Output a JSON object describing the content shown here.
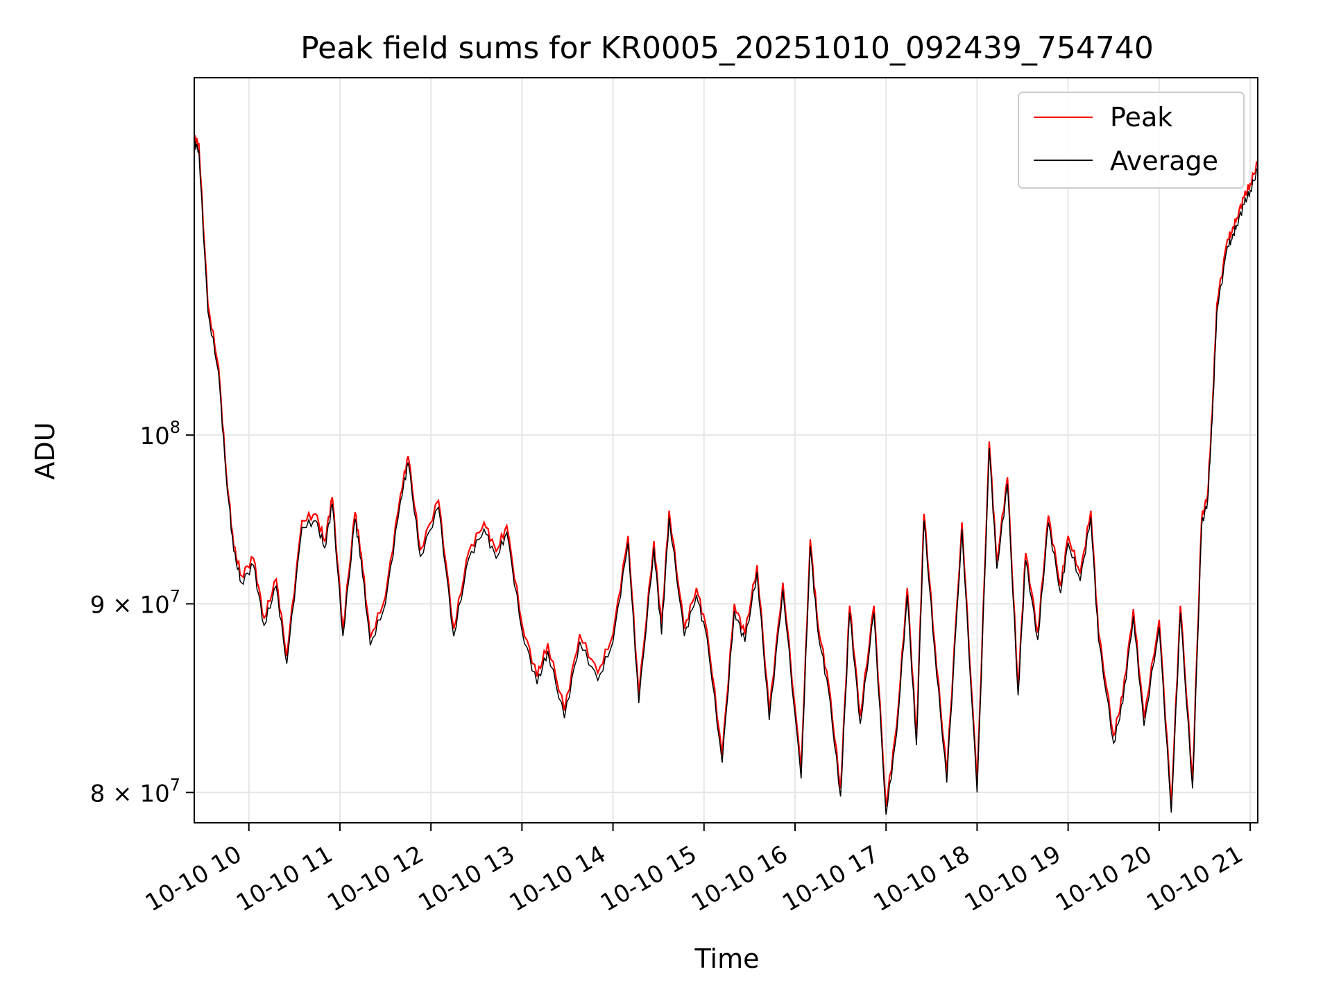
{
  "chart_data": {
    "type": "line",
    "title": "Peak field sums for KR0005_20251010_092439_754740",
    "xlabel": "Time",
    "ylabel": "ADU",
    "yscale": "log",
    "xlim": [
      "2025-10-10 09:24",
      "2025-10-10 21:05"
    ],
    "ylim": [
      78500000,
      125000000
    ],
    "x_ticks": [
      "10-10 10",
      "10-10 11",
      "10-10 12",
      "10-10 13",
      "10-10 14",
      "10-10 15",
      "10-10 16",
      "10-10 17",
      "10-10 18",
      "10-10 19",
      "10-10 20",
      "10-10 21"
    ],
    "y_ticks": [
      {
        "value": 80000000,
        "mantissa": "8",
        "base": "10",
        "exp": "7"
      },
      {
        "value": 90000000,
        "mantissa": "9",
        "base": "10",
        "exp": "7"
      },
      {
        "value": 100000000,
        "mantissa": "",
        "base": "10",
        "exp": "8"
      }
    ],
    "grid": true,
    "legend_position": "top-right",
    "series": [
      {
        "name": "Peak",
        "color": "#ff0000"
      },
      {
        "name": "Average",
        "color": "#000000"
      }
    ],
    "x": [
      "2025-10-10 09:24",
      "2025-10-10 09:27",
      "2025-10-10 09:33",
      "2025-10-10 09:40",
      "2025-10-10 09:45",
      "2025-10-10 09:50",
      "2025-10-10 09:55",
      "2025-10-10 10:03",
      "2025-10-10 10:10",
      "2025-10-10 10:18",
      "2025-10-10 10:25",
      "2025-10-10 10:35",
      "2025-10-10 10:44",
      "2025-10-10 10:50",
      "2025-10-10 10:55",
      "2025-10-10 11:02",
      "2025-10-10 11:10",
      "2025-10-10 11:14",
      "2025-10-10 11:20",
      "2025-10-10 11:30",
      "2025-10-10 11:40",
      "2025-10-10 11:45",
      "2025-10-10 11:53",
      "2025-10-10 12:05",
      "2025-10-10 12:15",
      "2025-10-10 12:25",
      "2025-10-10 12:35",
      "2025-10-10 12:43",
      "2025-10-10 12:50",
      "2025-10-10 13:00",
      "2025-10-10 13:10",
      "2025-10-10 13:17",
      "2025-10-10 13:28",
      "2025-10-10 13:38",
      "2025-10-10 13:50",
      "2025-10-10 14:00",
      "2025-10-10 14:10",
      "2025-10-10 14:17",
      "2025-10-10 14:27",
      "2025-10-10 14:32",
      "2025-10-10 14:37",
      "2025-10-10 14:47",
      "2025-10-10 14:55",
      "2025-10-10 15:02",
      "2025-10-10 15:12",
      "2025-10-10 15:20",
      "2025-10-10 15:27",
      "2025-10-10 15:35",
      "2025-10-10 15:43",
      "2025-10-10 15:52",
      "2025-10-10 16:04",
      "2025-10-10 16:10",
      "2025-10-10 16:15",
      "2025-10-10 16:22",
      "2025-10-10 16:30",
      "2025-10-10 16:36",
      "2025-10-10 16:43",
      "2025-10-10 16:52",
      "2025-10-10 17:00",
      "2025-10-10 17:07",
      "2025-10-10 17:14",
      "2025-10-10 17:20",
      "2025-10-10 17:25",
      "2025-10-10 17:32",
      "2025-10-10 17:40",
      "2025-10-10 17:50",
      "2025-10-10 18:00",
      "2025-10-10 18:08",
      "2025-10-10 18:13",
      "2025-10-10 18:20",
      "2025-10-10 18:27",
      "2025-10-10 18:32",
      "2025-10-10 18:40",
      "2025-10-10 18:47",
      "2025-10-10 18:55",
      "2025-10-10 19:00",
      "2025-10-10 19:08",
      "2025-10-10 19:15",
      "2025-10-10 19:20",
      "2025-10-10 19:30",
      "2025-10-10 19:36",
      "2025-10-10 19:43",
      "2025-10-10 19:50",
      "2025-10-10 20:00",
      "2025-10-10 20:08",
      "2025-10-10 20:14",
      "2025-10-10 20:22",
      "2025-10-10 20:28",
      "2025-10-10 20:32",
      "2025-10-10 20:35",
      "2025-10-10 20:38",
      "2025-10-10 20:45",
      "2025-10-10 20:48",
      "2025-10-10 20:51",
      "2025-10-10 20:56",
      "2025-10-10 21:00",
      "2025-10-10 21:05"
    ],
    "values": [
      120000000,
      119500000,
      108000000,
      104000000,
      97500000,
      93000000,
      91200000,
      92200000,
      88800000,
      91000000,
      86700000,
      94400000,
      94800000,
      93200000,
      95800000,
      88200000,
      94900000,
      92500000,
      87700000,
      90000000,
      96000000,
      98300000,
      92700000,
      95600000,
      88200000,
      92600000,
      94300000,
      92600000,
      94100000,
      88500000,
      85600000,
      87400000,
      83800000,
      87900000,
      85800000,
      87900000,
      93500000,
      84600000,
      93200000,
      88300000,
      95000000,
      88200000,
      90500000,
      88100000,
      81500000,
      89600000,
      87900000,
      91800000,
      83700000,
      90800000,
      80700000,
      93300000,
      88500000,
      85300000,
      79800000,
      89500000,
      83500000,
      89500000,
      78900000,
      83000000,
      90500000,
      82400000,
      94800000,
      87500000,
      80500000,
      94300000,
      80000000,
      99200000,
      92000000,
      97000000,
      85000000,
      92500000,
      88000000,
      94700000,
      90600000,
      93500000,
      91300000,
      95000000,
      88000000,
      82500000,
      84600000,
      89300000,
      83400000,
      88700000,
      79000000,
      89500000,
      80200000,
      94500000,
      96000000,
      101000000,
      108000000,
      112500000,
      113000000,
      114000000,
      115500000,
      116500000,
      118000000
    ],
    "peak_values": [
      120400000,
      120000000,
      108500000,
      104400000,
      97800000,
      93300000,
      91600000,
      92600000,
      89200000,
      91400000,
      87100000,
      94800000,
      95200000,
      93600000,
      96200000,
      88600000,
      95300000,
      92900000,
      88100000,
      90400000,
      96400000,
      98700000,
      93100000,
      96000000,
      88600000,
      93000000,
      94700000,
      93000000,
      94500000,
      88900000,
      86000000,
      87800000,
      84200000,
      88300000,
      86200000,
      88300000,
      93900000,
      85000000,
      93600000,
      88700000,
      95400000,
      88600000,
      90900000,
      88500000,
      81900000,
      90000000,
      88300000,
      92200000,
      84100000,
      91200000,
      81100000,
      93700000,
      88900000,
      85700000,
      80200000,
      89900000,
      83900000,
      89900000,
      79300000,
      83400000,
      90900000,
      82800000,
      95200000,
      87900000,
      80900000,
      94700000,
      80400000,
      99600000,
      92400000,
      97400000,
      85400000,
      92900000,
      88400000,
      95100000,
      91000000,
      93900000,
      91700000,
      95400000,
      88400000,
      82900000,
      85000000,
      89700000,
      83800000,
      89100000,
      79400000,
      89900000,
      80600000,
      94900000,
      96400000,
      101400000,
      108500000,
      113000000,
      113500000,
      114500000,
      116000000,
      117000000,
      118500000
    ]
  }
}
